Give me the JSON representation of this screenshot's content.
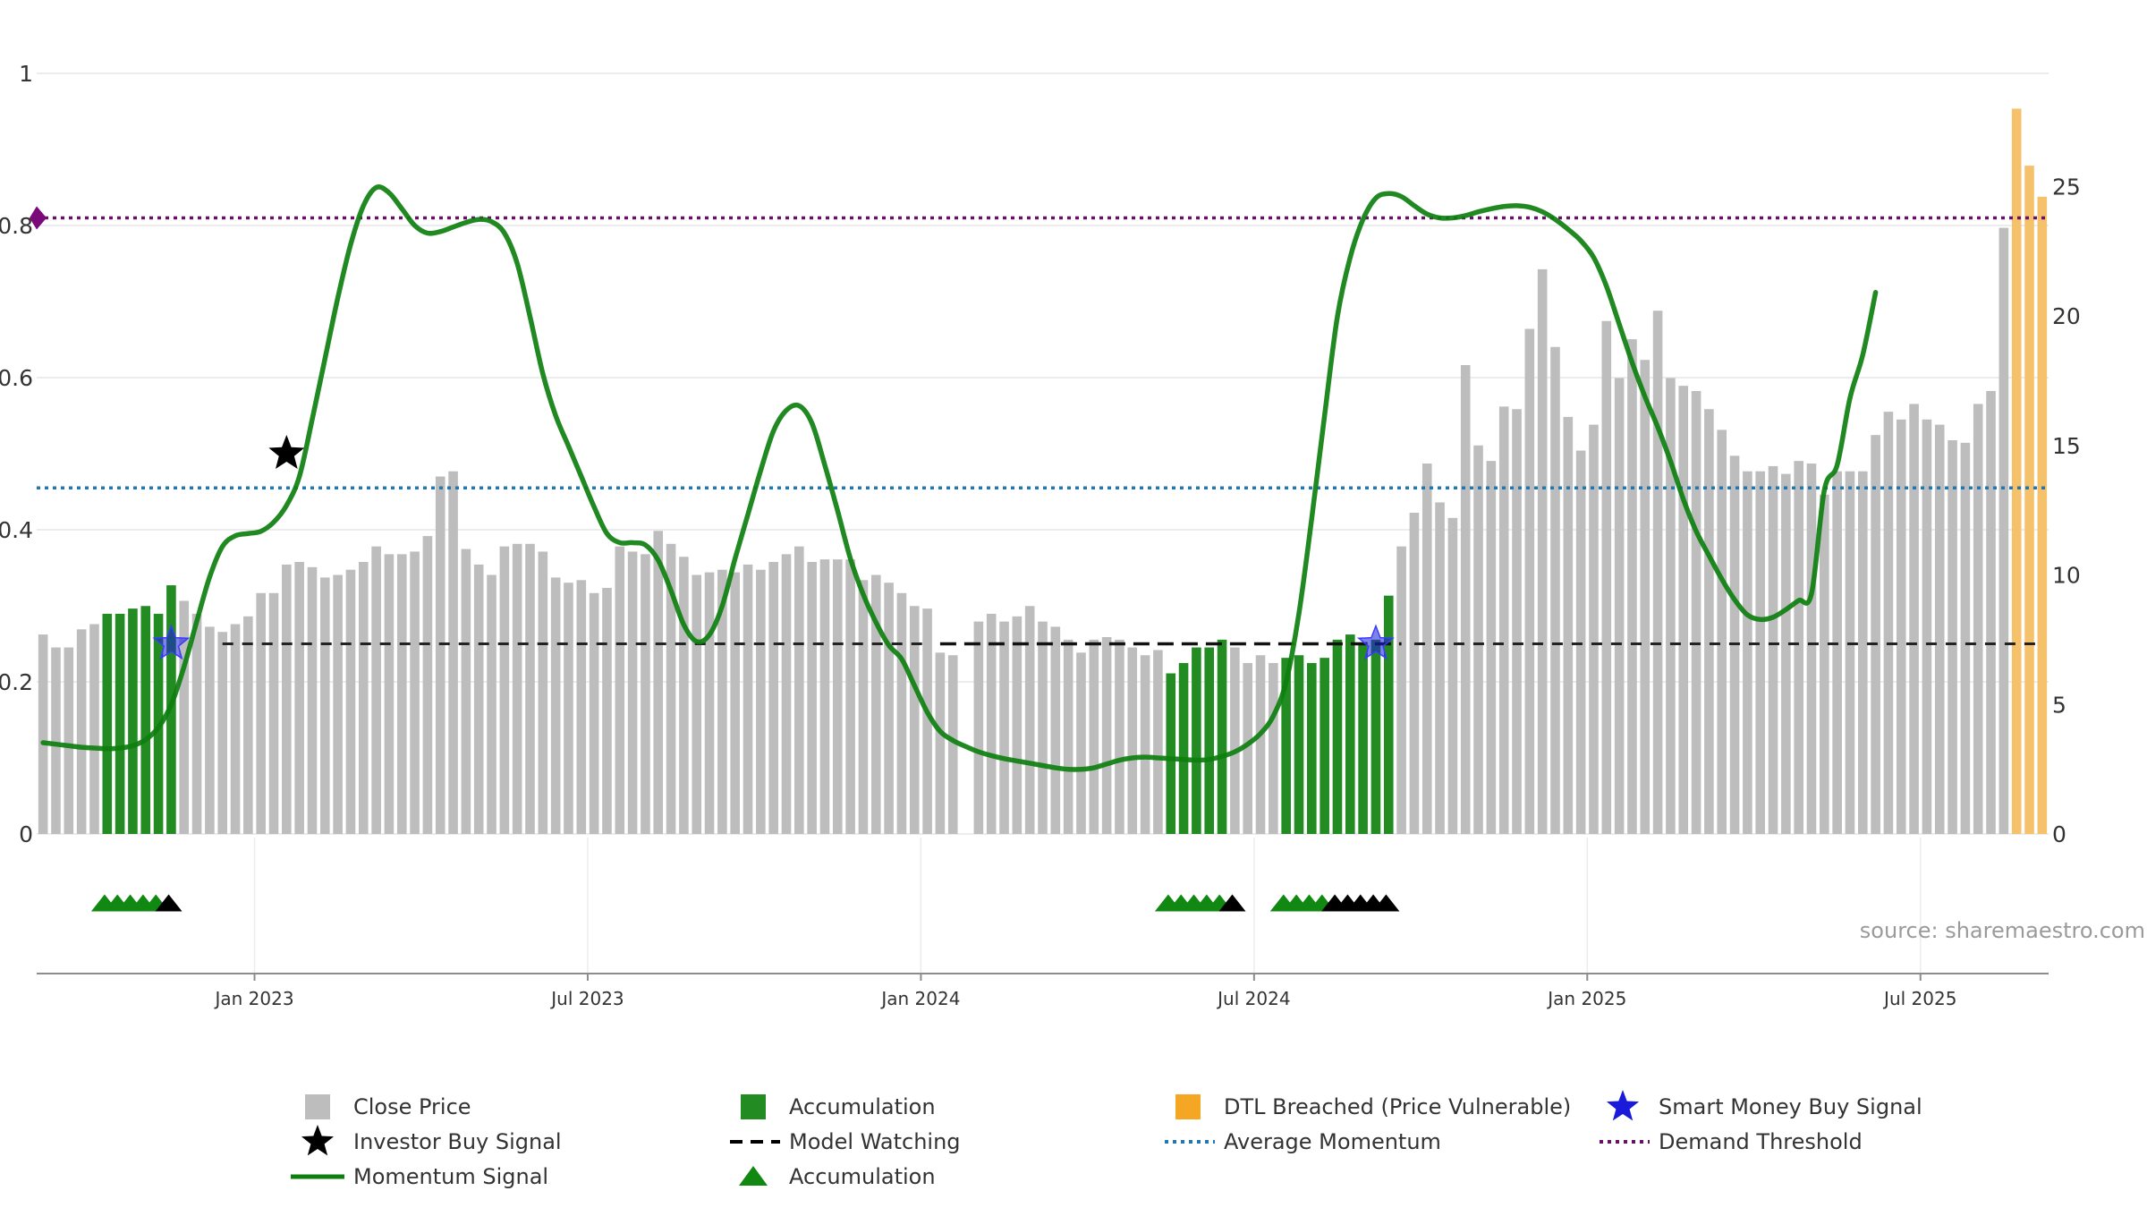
{
  "colors": {
    "price": "#bdbdbd",
    "accumulation": "#228b22",
    "dtl": "#f5c26b",
    "momentum": "#0e7f0e",
    "average": "#1f77b4",
    "demand": "#6a0f6a",
    "smart_money": "#1a1adb",
    "investor": "#000000",
    "grid": "#e6e6e6"
  },
  "chart_data": {
    "type": "bar+line",
    "source": "source: sharemaestro.com",
    "left_axis": {
      "min": 0,
      "max": 1,
      "ticks": [
        0,
        0.2,
        0.4,
        0.6,
        0.8,
        1
      ],
      "tick_labels": [
        "0",
        "0.2",
        "0.4",
        "0.6",
        "0.8",
        "1"
      ]
    },
    "right_axis": {
      "min": 0,
      "max": 29.5,
      "ticks": [
        0,
        5,
        10,
        15,
        20,
        25
      ],
      "tick_labels": [
        "0",
        "5",
        "10",
        "15",
        "20",
        "25"
      ]
    },
    "x_axis": {
      "tick_labels": [
        "Jan 2023",
        "Jul 2023",
        "Jan 2024",
        "Jul 2024",
        "Jan 2025",
        "Jul 2025"
      ],
      "tick_index": [
        17,
        43,
        69,
        95,
        121,
        147
      ]
    },
    "price_close": [
      7.7,
      7.2,
      7.2,
      7.9,
      8.1,
      8.5,
      8.5,
      8.7,
      8.8,
      8.5,
      9.6,
      9.0,
      8.5,
      8.0,
      7.8,
      8.1,
      8.4,
      9.3,
      9.3,
      10.4,
      10.5,
      10.3,
      9.9,
      10.0,
      10.2,
      10.5,
      11.1,
      10.8,
      10.8,
      10.9,
      11.5,
      13.8,
      14.0,
      11.0,
      10.4,
      10.0,
      11.1,
      11.2,
      11.2,
      10.9,
      9.9,
      9.7,
      9.8,
      9.3,
      9.5,
      11.1,
      10.9,
      10.8,
      11.7,
      11.2,
      10.7,
      10.0,
      10.1,
      10.2,
      10.1,
      10.4,
      10.2,
      10.5,
      10.8,
      11.1,
      10.5,
      10.6,
      10.6,
      10.6,
      9.8,
      10.0,
      9.7,
      9.3,
      8.8,
      8.7,
      7.0,
      6.9,
      0,
      8.2,
      8.5,
      8.2,
      8.4,
      8.8,
      8.2,
      8.0,
      7.5,
      7.0,
      7.5,
      7.6,
      7.5,
      7.2,
      6.9,
      7.1,
      6.2,
      6.6,
      7.2,
      7.2,
      7.5,
      7.2,
      6.6,
      6.9,
      6.6,
      6.8,
      6.9,
      6.6,
      6.8,
      7.5,
      7.7,
      7.4,
      7.5,
      9.2,
      11.1,
      12.4,
      14.3,
      12.8,
      12.2,
      18.1,
      15.0,
      14.4,
      16.5,
      16.4,
      19.5,
      21.8,
      18.8,
      16.1,
      14.8,
      15.8,
      19.8,
      17.6,
      19.1,
      18.3,
      20.2,
      17.6,
      17.3,
      17.1,
      16.4,
      15.6,
      14.6,
      14.0,
      14.0,
      14.2,
      13.9,
      14.4,
      14.3,
      13.1,
      14.0,
      14.0,
      14.0,
      15.4,
      16.3,
      16.0,
      16.6,
      16.0,
      15.8,
      15.2,
      15.1,
      16.6,
      17.1,
      23.4,
      28.0,
      25.8,
      24.6
    ],
    "accumulation_index": [
      5,
      6,
      7,
      8,
      9,
      10,
      88,
      89,
      90,
      91,
      92,
      97,
      98,
      99,
      100,
      101,
      102,
      103,
      104,
      105
    ],
    "dtl_index": [
      154,
      155,
      156
    ],
    "momentum": [
      0.12,
      0.118,
      0.116,
      0.114,
      0.113,
      0.112,
      0.113,
      0.116,
      0.124,
      0.14,
      0.17,
      0.22,
      0.28,
      0.338,
      0.378,
      0.392,
      0.395,
      0.398,
      0.41,
      0.432,
      0.47,
      0.545,
      0.625,
      0.705,
      0.775,
      0.826,
      0.85,
      0.843,
      0.822,
      0.8,
      0.79,
      0.792,
      0.798,
      0.804,
      0.808,
      0.805,
      0.79,
      0.75,
      0.68,
      0.605,
      0.55,
      0.51,
      0.47,
      0.43,
      0.395,
      0.383,
      0.383,
      0.38,
      0.36,
      0.32,
      0.275,
      0.253,
      0.262,
      0.3,
      0.362,
      0.42,
      0.478,
      0.53,
      0.557,
      0.563,
      0.54,
      0.485,
      0.425,
      0.362,
      0.315,
      0.278,
      0.248,
      0.23,
      0.195,
      0.16,
      0.135,
      0.123,
      0.115,
      0.108,
      0.103,
      0.099,
      0.096,
      0.093,
      0.09,
      0.087,
      0.085,
      0.085,
      0.087,
      0.092,
      0.097,
      0.1,
      0.101,
      0.1,
      0.099,
      0.098,
      0.097,
      0.098,
      0.102,
      0.108,
      0.118,
      0.132,
      0.155,
      0.2,
      0.29,
      0.415,
      0.55,
      0.68,
      0.758,
      0.808,
      0.836,
      0.842,
      0.838,
      0.826,
      0.815,
      0.81,
      0.81,
      0.813,
      0.818,
      0.822,
      0.825,
      0.826,
      0.824,
      0.818,
      0.808,
      0.795,
      0.78,
      0.758,
      0.72,
      0.67,
      0.62,
      0.575,
      0.535,
      0.49,
      0.44,
      0.398,
      0.366,
      0.335,
      0.308,
      0.288,
      0.282,
      0.285,
      0.295,
      0.307,
      0.316,
      0.452,
      0.485,
      0.573,
      0.63,
      0.712
    ],
    "average_momentum": 0.455,
    "model_watching_level": 0.25,
    "demand_threshold": 0.81,
    "smart_money_signals": [
      {
        "index": 10,
        "value": 0.25
      },
      {
        "index": 104,
        "value": 0.25
      }
    ],
    "investor_buy_signals": [
      {
        "index": 19,
        "value": 0.5
      }
    ],
    "triangles": [
      {
        "index": 4.8,
        "color": "green"
      },
      {
        "index": 5.8,
        "color": "green"
      },
      {
        "index": 6.8,
        "color": "green"
      },
      {
        "index": 7.8,
        "color": "green"
      },
      {
        "index": 8.8,
        "color": "green"
      },
      {
        "index": 9.8,
        "color": "black"
      },
      {
        "index": 87.8,
        "color": "green"
      },
      {
        "index": 88.8,
        "color": "green"
      },
      {
        "index": 89.8,
        "color": "green"
      },
      {
        "index": 90.8,
        "color": "green"
      },
      {
        "index": 91.8,
        "color": "green"
      },
      {
        "index": 92.8,
        "color": "black"
      },
      {
        "index": 96.8,
        "color": "green"
      },
      {
        "index": 97.8,
        "color": "green"
      },
      {
        "index": 98.8,
        "color": "green"
      },
      {
        "index": 99.8,
        "color": "green"
      },
      {
        "index": 100.8,
        "color": "black"
      },
      {
        "index": 101.8,
        "color": "black"
      },
      {
        "index": 102.8,
        "color": "black"
      },
      {
        "index": 103.8,
        "color": "black"
      },
      {
        "index": 104.8,
        "color": "black"
      }
    ],
    "legend": [
      {
        "key": "close_price",
        "label": "Close Price",
        "symbol": "square",
        "color": "#bdbdbd"
      },
      {
        "key": "accumulation_bar",
        "label": "Accumulation",
        "symbol": "square",
        "color": "#228b22"
      },
      {
        "key": "dtl",
        "label": "DTL Breached (Price Vulnerable)",
        "symbol": "square",
        "color": "#f5a623"
      },
      {
        "key": "smart_money",
        "label": "Smart Money Buy Signal",
        "symbol": "star",
        "color": "#1a1adb"
      },
      {
        "key": "investor",
        "label": "Investor Buy Signal",
        "symbol": "star",
        "color": "#000000"
      },
      {
        "key": "model_watching",
        "label": "Model Watching",
        "symbol": "dash",
        "color": "#000000"
      },
      {
        "key": "average",
        "label": "Average Momentum",
        "symbol": "dot",
        "color": "#1f77b4"
      },
      {
        "key": "demand",
        "label": "Demand Threshold",
        "symbol": "dot",
        "color": "#6a0f6a"
      },
      {
        "key": "momentum",
        "label": "Momentum Signal",
        "symbol": "line",
        "color": "#0e7f0e"
      },
      {
        "key": "accumulation_triangle",
        "label": "Accumulation",
        "symbol": "triangle",
        "color": "#118811"
      }
    ]
  }
}
